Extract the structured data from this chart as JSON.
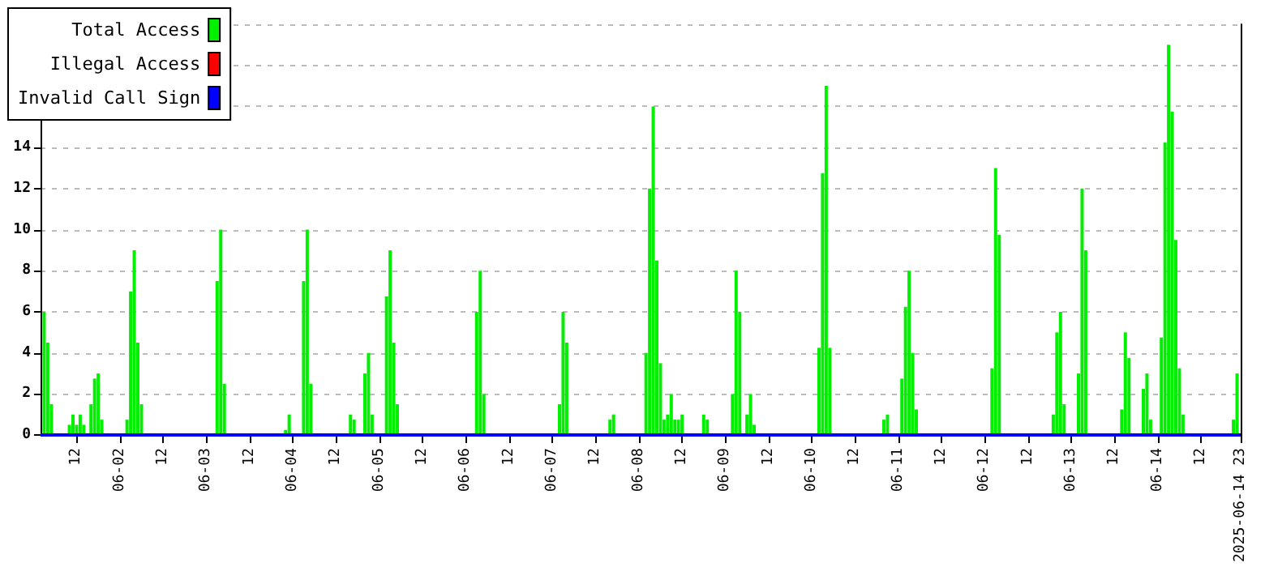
{
  "chart_data": {
    "type": "bar",
    "xlim": [
      "2025-06-01T02:00",
      "2025-06-14T23:00"
    ],
    "xticks": [
      {
        "value": "2025-06-01T12:00",
        "label": "12"
      },
      {
        "value": "2025-06-02T00:00",
        "label": "06-02"
      },
      {
        "value": "2025-06-02T12:00",
        "label": "12"
      },
      {
        "value": "2025-06-03T00:00",
        "label": "06-03"
      },
      {
        "value": "2025-06-03T12:00",
        "label": "12"
      },
      {
        "value": "2025-06-04T00:00",
        "label": "06-04"
      },
      {
        "value": "2025-06-04T12:00",
        "label": "12"
      },
      {
        "value": "2025-06-05T00:00",
        "label": "06-05"
      },
      {
        "value": "2025-06-05T12:00",
        "label": "12"
      },
      {
        "value": "2025-06-06T00:00",
        "label": "06-06"
      },
      {
        "value": "2025-06-06T12:00",
        "label": "12"
      },
      {
        "value": "2025-06-07T00:00",
        "label": "06-07"
      },
      {
        "value": "2025-06-07T12:00",
        "label": "12"
      },
      {
        "value": "2025-06-08T00:00",
        "label": "06-08"
      },
      {
        "value": "2025-06-08T12:00",
        "label": "12"
      },
      {
        "value": "2025-06-09T00:00",
        "label": "06-09"
      },
      {
        "value": "2025-06-09T12:00",
        "label": "12"
      },
      {
        "value": "2025-06-10T00:00",
        "label": "06-10"
      },
      {
        "value": "2025-06-10T12:00",
        "label": "12"
      },
      {
        "value": "2025-06-11T00:00",
        "label": "06-11"
      },
      {
        "value": "2025-06-11T12:00",
        "label": "12"
      },
      {
        "value": "2025-06-12T00:00",
        "label": "06-12"
      },
      {
        "value": "2025-06-12T12:00",
        "label": "12"
      },
      {
        "value": "2025-06-13T00:00",
        "label": "06-13"
      },
      {
        "value": "2025-06-13T12:00",
        "label": "12"
      },
      {
        "value": "2025-06-14T00:00",
        "label": "06-14"
      },
      {
        "value": "2025-06-14T12:00",
        "label": "12"
      },
      {
        "value": "2025-06-14T23:00",
        "label": "2025-06-14 23"
      }
    ],
    "ylim": [
      0,
      20
    ],
    "yticks": [
      0,
      2,
      4,
      6,
      8,
      10,
      12,
      14,
      {
        "value": 16,
        "label": null
      },
      {
        "value": 18,
        "label": null
      },
      {
        "value": 20,
        "label": null
      }
    ],
    "grid": "y",
    "legend": "top left",
    "marker": "none",
    "series": [
      {
        "name": "Total Access",
        "color": "#00f000",
        "x": [
          "2025-06-01T03:00",
          "2025-06-01T04:00",
          "2025-06-01T05:00",
          "2025-06-01T10:00",
          "2025-06-01T11:00",
          "2025-06-01T12:00",
          "2025-06-01T13:00",
          "2025-06-01T14:00",
          "2025-06-01T16:00",
          "2025-06-01T17:00",
          "2025-06-01T18:00",
          "2025-06-01T19:00",
          "2025-06-02T02:00",
          "2025-06-02T03:00",
          "2025-06-02T04:00",
          "2025-06-02T05:00",
          "2025-06-02T06:00",
          "2025-06-03T03:00",
          "2025-06-03T04:00",
          "2025-06-03T05:00",
          "2025-06-03T22:00",
          "2025-06-03T23:00",
          "2025-06-04T03:00",
          "2025-06-04T04:00",
          "2025-06-04T05:00",
          "2025-06-04T16:00",
          "2025-06-04T17:00",
          "2025-06-04T20:00",
          "2025-06-04T21:00",
          "2025-06-04T22:00",
          "2025-06-05T02:00",
          "2025-06-05T03:00",
          "2025-06-05T04:00",
          "2025-06-05T05:00",
          "2025-06-06T03:00",
          "2025-06-06T04:00",
          "2025-06-06T05:00",
          "2025-06-07T02:00",
          "2025-06-07T03:00",
          "2025-06-07T04:00",
          "2025-06-07T16:00",
          "2025-06-07T17:00",
          "2025-06-08T02:00",
          "2025-06-08T03:00",
          "2025-06-08T04:00",
          "2025-06-08T05:00",
          "2025-06-08T06:00",
          "2025-06-08T07:00",
          "2025-06-08T08:00",
          "2025-06-08T09:00",
          "2025-06-08T10:00",
          "2025-06-08T11:00",
          "2025-06-08T12:00",
          "2025-06-08T18:00",
          "2025-06-08T19:00",
          "2025-06-09T02:00",
          "2025-06-09T03:00",
          "2025-06-09T04:00",
          "2025-06-09T06:00",
          "2025-06-09T07:00",
          "2025-06-09T08:00",
          "2025-06-10T02:00",
          "2025-06-10T03:00",
          "2025-06-10T04:00",
          "2025-06-10T05:00",
          "2025-06-10T20:00",
          "2025-06-10T21:00",
          "2025-06-11T01:00",
          "2025-06-11T02:00",
          "2025-06-11T03:00",
          "2025-06-11T04:00",
          "2025-06-11T05:00",
          "2025-06-12T02:00",
          "2025-06-12T03:00",
          "2025-06-12T04:00",
          "2025-06-12T19:00",
          "2025-06-12T20:00",
          "2025-06-12T21:00",
          "2025-06-12T22:00",
          "2025-06-13T02:00",
          "2025-06-13T03:00",
          "2025-06-13T04:00",
          "2025-06-13T14:00",
          "2025-06-13T15:00",
          "2025-06-13T16:00",
          "2025-06-13T20:00",
          "2025-06-13T21:00",
          "2025-06-13T22:00",
          "2025-06-14T01:00",
          "2025-06-14T02:00",
          "2025-06-14T03:00",
          "2025-06-14T04:00",
          "2025-06-14T05:00",
          "2025-06-14T06:00",
          "2025-06-14T07:00",
          "2025-06-14T21:00",
          "2025-06-14T22:00"
        ],
        "values": [
          6,
          4.5,
          1.5,
          0.5,
          1,
          0.5,
          1,
          0.5,
          1.5,
          2.75,
          3,
          0.75,
          0.75,
          7,
          9,
          4.5,
          1.5,
          7.5,
          10,
          2.5,
          0.25,
          1,
          7.5,
          10,
          2.5,
          1,
          0.75,
          3,
          4,
          1,
          6.75,
          9,
          4.5,
          1.5,
          6,
          8,
          2,
          1.5,
          6,
          4.5,
          0.75,
          1,
          4,
          12,
          16,
          8.5,
          3.5,
          0.75,
          1,
          2,
          0.75,
          0.75,
          1,
          1,
          0.75,
          2,
          8,
          6,
          1,
          2,
          0.5,
          4.25,
          12.75,
          17,
          4.25,
          0.75,
          1,
          2.75,
          6.25,
          8,
          4,
          1.25,
          3.25,
          13,
          9.75,
          1,
          5,
          6,
          1.5,
          3,
          12,
          9,
          1.25,
          5,
          3.75,
          2.25,
          3,
          0.75,
          4.75,
          14.25,
          19,
          15.75,
          9.5,
          3.25,
          1,
          0.75,
          3
        ]
      },
      {
        "name": "Illegal Access",
        "type": "line",
        "color": "#ff0000"
      },
      {
        "name": "Invalid Call Sign",
        "type": "line",
        "color": "#0000ff",
        "x": [
          "2025-06-01T02:00",
          "2025-06-14T23:00"
        ],
        "values": [
          0,
          0
        ]
      }
    ]
  }
}
